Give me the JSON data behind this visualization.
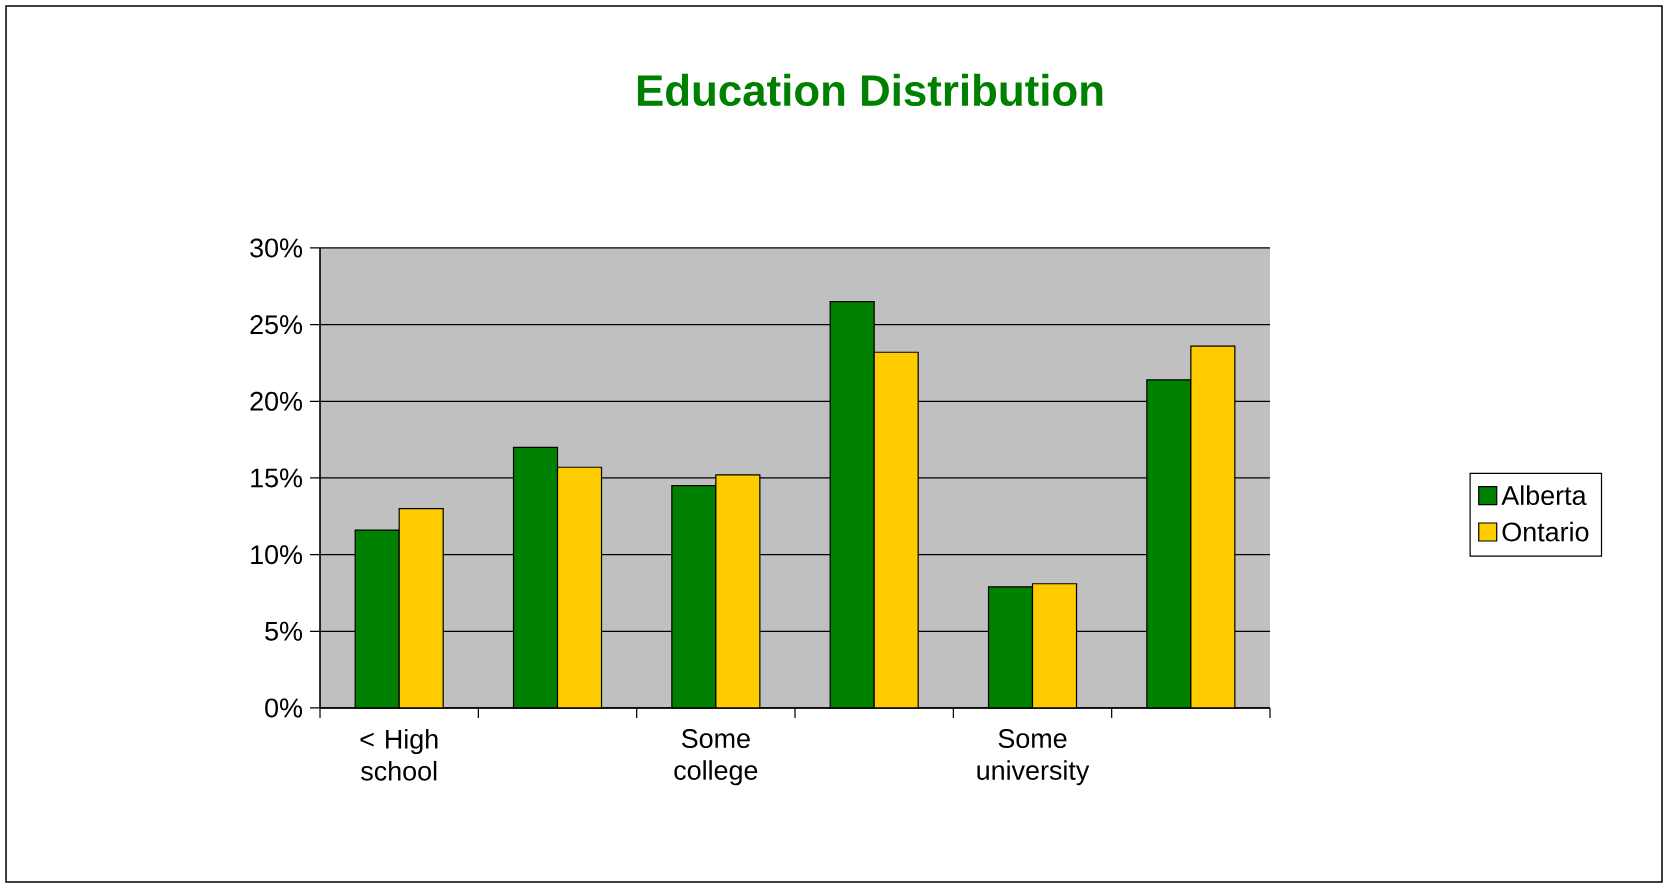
{
  "chart_data": {
    "type": "bar",
    "title": "Education Distribution",
    "categories": [
      "< High school",
      null,
      "Some college",
      null,
      "Some university",
      null
    ],
    "series": [
      {
        "name": "Alberta",
        "color": "#008000",
        "values": [
          11.6,
          17,
          14.5,
          26.5,
          7.9,
          21.4
        ]
      },
      {
        "name": "Ontario",
        "color": "#ffcc00",
        "values": [
          13,
          15.7,
          15.2,
          23.2,
          8.1,
          23.6
        ]
      }
    ],
    "ylim": [
      0,
      30
    ],
    "yticks": [
      {
        "value": 0,
        "label": "0%"
      },
      {
        "value": 5,
        "label": "5%"
      },
      {
        "value": 10,
        "label": "10%"
      },
      {
        "value": 15,
        "label": "15%"
      },
      {
        "value": 20,
        "label": "20%"
      },
      {
        "value": 25,
        "label": "25%"
      },
      {
        "value": 30,
        "label": "30%"
      }
    ],
    "grid": "y",
    "legend": "right"
  }
}
